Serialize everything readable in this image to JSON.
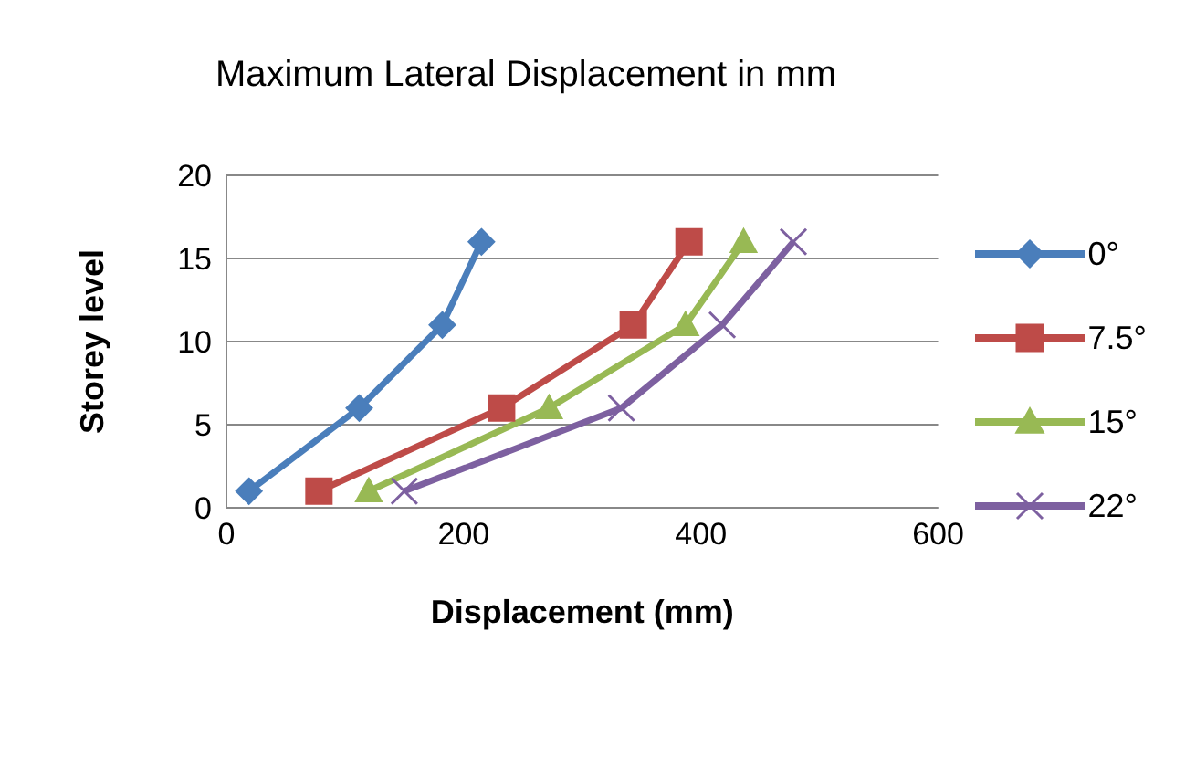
{
  "chart_data": {
    "type": "line",
    "title": "Maximum Lateral Displacement in mm",
    "xlabel": "Displacement (mm)",
    "ylabel": "Storey level",
    "xlim": [
      0,
      600
    ],
    "xticks": [
      0,
      200,
      400,
      600
    ],
    "ylim": [
      0,
      20
    ],
    "yticks": [
      0,
      5,
      10,
      15,
      20
    ],
    "grid": "y",
    "legend": "right",
    "series": [
      {
        "name": "0°",
        "color": "#4a7ebb",
        "marker": "diamond",
        "x": [
          19,
          112,
          182,
          215
        ],
        "values": [
          1,
          6,
          11,
          16
        ]
      },
      {
        "name": "7.5°",
        "color": "#be4b48",
        "marker": "square",
        "x": [
          78,
          232,
          343,
          390
        ],
        "values": [
          1,
          6,
          11,
          16
        ]
      },
      {
        "name": "15°",
        "color": "#98b954",
        "marker": "triangle",
        "x": [
          120,
          272,
          387,
          436
        ],
        "values": [
          1,
          6,
          11,
          16
        ]
      },
      {
        "name": "22°",
        "color": "#7d60a0",
        "marker": "cross",
        "x": [
          150,
          333,
          418,
          478
        ],
        "values": [
          1,
          6,
          11,
          16
        ]
      }
    ]
  }
}
